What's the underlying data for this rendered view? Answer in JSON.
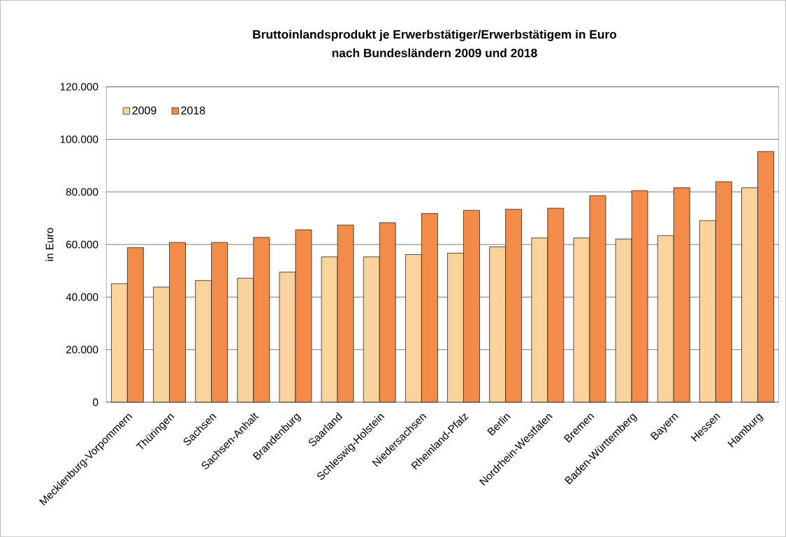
{
  "chart_data": {
    "type": "bar",
    "title": "Bruttoinlandsprodukt je Erwerbstätiger/Erwerbstätigem in Euro",
    "subtitle": "nach Bundesländern 2009 und 2018",
    "ylabel": "in Euro",
    "categories": [
      "Mecklenburg-Vorpommern",
      "Thüringen",
      "Sachsen",
      "Sachsen-Anhalt",
      "Brandenburg",
      "Saarland",
      "Schleswig-Holstein",
      "Niedersachsen",
      "Rheinland-Pfalz",
      "Berlin",
      "Nordrhein-Westfalen",
      "Bremen",
      "Baden-Württemberg",
      "Bayern",
      "Hessen",
      "Hamburg"
    ],
    "series": [
      {
        "name": "2009",
        "color": "#fad29b",
        "values": [
          45100,
          43800,
          46300,
          47200,
          49500,
          55300,
          55300,
          56200,
          56700,
          59100,
          62500,
          62500,
          62100,
          63400,
          69100,
          81600
        ]
      },
      {
        "name": "2018",
        "color": "#f28c48",
        "values": [
          58800,
          60800,
          60800,
          62700,
          65600,
          67400,
          68300,
          71800,
          73000,
          73400,
          73800,
          78600,
          80500,
          81600,
          83900,
          95400
        ]
      }
    ],
    "ylim": [
      0,
      120000
    ],
    "yticks": [
      0,
      {
        "value": 20000,
        "label": "20.000"
      },
      {
        "value": 40000,
        "label": "40.000"
      },
      {
        "value": 60000,
        "label": "60.000"
      },
      {
        "value": 80000,
        "label": "80.000"
      },
      {
        "value": 100000,
        "label": "100.000"
      },
      {
        "value": 120000,
        "label": "120.000"
      }
    ],
    "grid": "y",
    "legend": "top left"
  }
}
